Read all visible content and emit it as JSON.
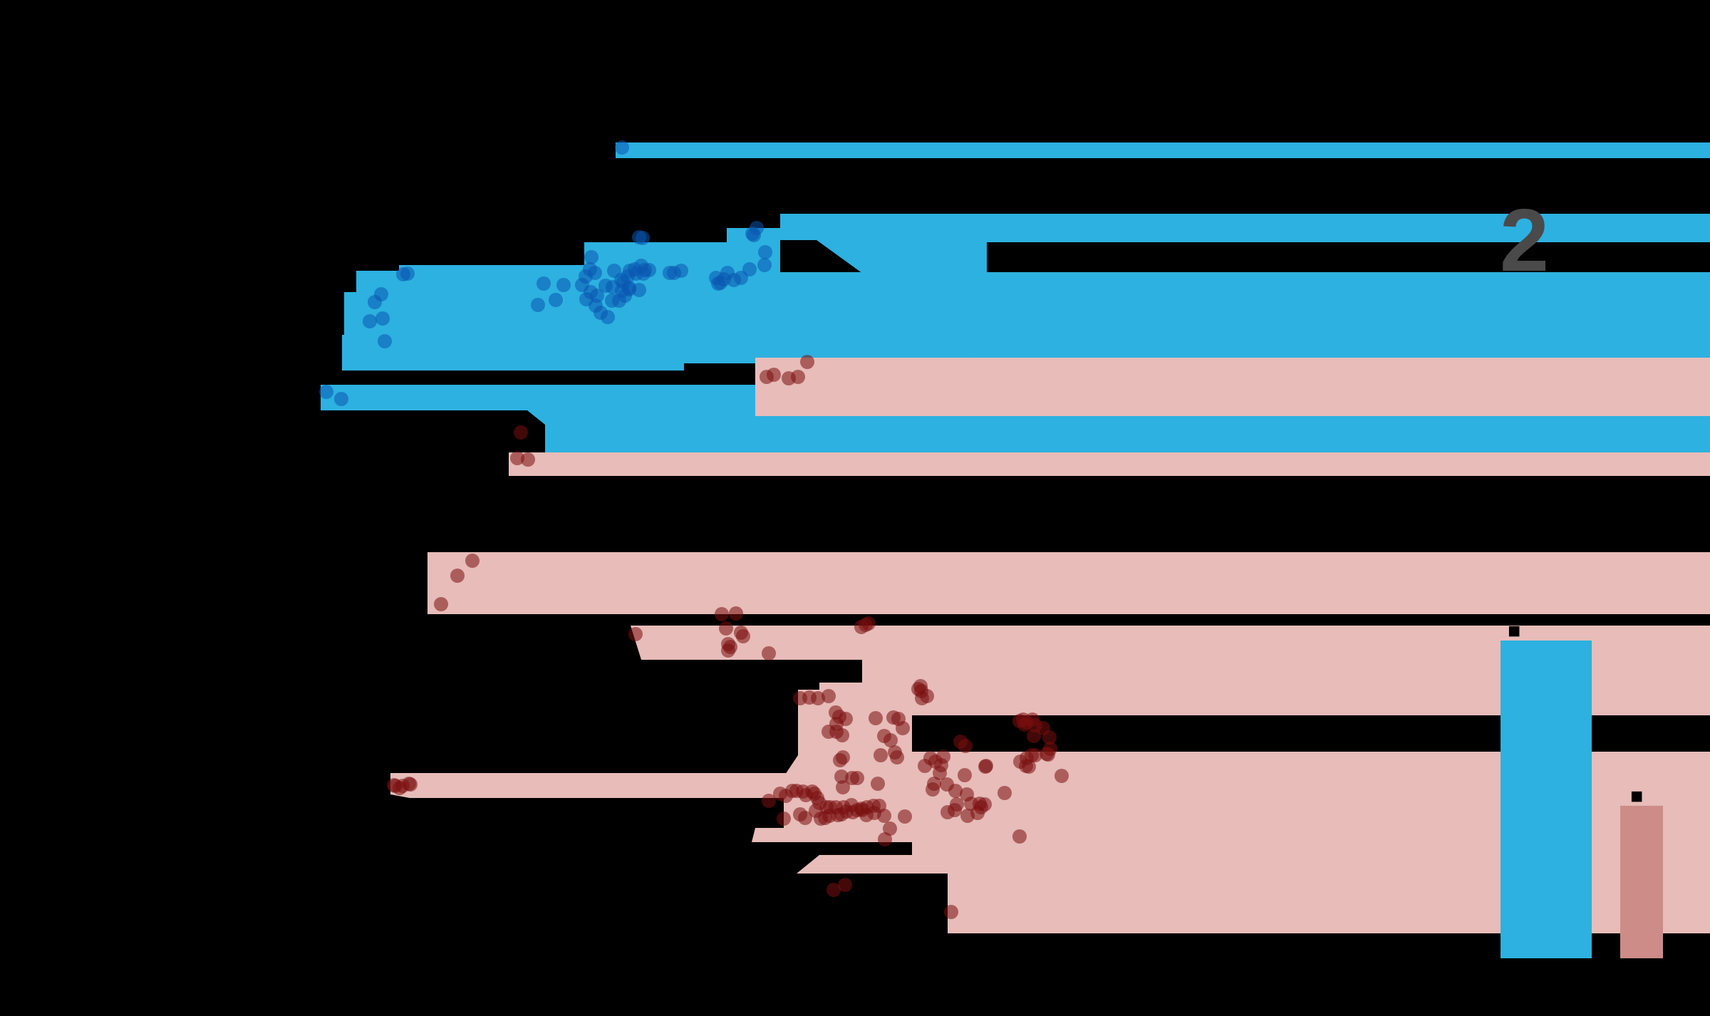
{
  "chart_data": {
    "type": "scatter",
    "year_label": "2",
    "colors": {
      "group_a": "#2db1e0",
      "group_b": "#e7bcb9",
      "group_a_points": "#0a55b0",
      "group_b_points": "#7a0f0f",
      "group_b_bar": "#cd8c88",
      "year_label": "#4a4a4a"
    },
    "groups": [
      {
        "id": "group_a",
        "points": [
          [
            873,
            207
          ],
          [
            566,
            385
          ],
          [
            572,
            384
          ],
          [
            526,
            424
          ],
          [
            535,
            413
          ],
          [
            519,
            451
          ],
          [
            537,
            447
          ],
          [
            540,
            479
          ],
          [
            458,
            550
          ],
          [
            479,
            560
          ],
          [
            763,
            398
          ],
          [
            791,
            400
          ],
          [
            755,
            428
          ],
          [
            780,
            421
          ],
          [
            859,
            422
          ],
          [
            869,
            422
          ],
          [
            838,
            415
          ],
          [
            862,
            380
          ],
          [
            860,
            403
          ],
          [
            872,
            393
          ],
          [
            884,
            380
          ],
          [
            877,
            415
          ],
          [
            883,
            406
          ],
          [
            881,
            388
          ],
          [
            900,
            373
          ],
          [
            893,
            384
          ],
          [
            897,
            407
          ],
          [
            903,
            384
          ],
          [
            911,
            379
          ],
          [
            905,
            379
          ],
          [
            891,
            378
          ],
          [
            883,
            404
          ],
          [
            873,
            408
          ],
          [
            875,
            396
          ],
          [
            850,
            401
          ],
          [
            828,
            378
          ],
          [
            835,
            383
          ],
          [
            829,
            410
          ],
          [
            822,
            388
          ],
          [
            817,
            400
          ],
          [
            823,
            420
          ],
          [
            836,
            429
          ],
          [
            843,
            439
          ],
          [
            853,
            445
          ],
          [
            830,
            361
          ],
          [
            940,
            383
          ],
          [
            946,
            383
          ],
          [
            956,
            380
          ],
          [
            1005,
            390
          ],
          [
            1011,
            397
          ],
          [
            1016,
            392
          ],
          [
            1021,
            383
          ],
          [
            1030,
            393
          ],
          [
            1040,
            390
          ],
          [
            1052,
            378
          ],
          [
            1058,
            330
          ],
          [
            1056,
            328
          ],
          [
            1062,
            320
          ],
          [
            1074,
            354
          ],
          [
            1073,
            372
          ],
          [
            1008,
            398
          ],
          [
            902,
            334
          ],
          [
            897,
            333
          ]
        ]
      },
      {
        "id": "group_b",
        "points": [
          [
            1133,
            508
          ],
          [
            1120,
            529
          ],
          [
            1107,
            531
          ],
          [
            1076,
            529
          ],
          [
            1086,
            526
          ],
          [
            731,
            607
          ],
          [
            726,
            643
          ],
          [
            741,
            645
          ],
          [
            663,
            787
          ],
          [
            642,
            808
          ],
          [
            619,
            848
          ],
          [
            892,
            890
          ],
          [
            1013,
            862
          ],
          [
            1033,
            861
          ],
          [
            1019,
            882
          ],
          [
            1040,
            888
          ],
          [
            1025,
            908
          ],
          [
            1043,
            893
          ],
          [
            1022,
            904
          ],
          [
            1022,
            913
          ],
          [
            1079,
            917
          ],
          [
            1209,
            880
          ],
          [
            1219,
            875
          ],
          [
            1215,
            877
          ],
          [
            1292,
            963
          ],
          [
            1293,
            970
          ],
          [
            1289,
            967
          ],
          [
            1294,
            980
          ],
          [
            1301,
            977
          ],
          [
            1123,
            980
          ],
          [
            1136,
            979
          ],
          [
            1148,
            980
          ],
          [
            1163,
            977
          ],
          [
            1178,
            1006
          ],
          [
            1173,
            1000
          ],
          [
            1174,
            1016
          ],
          [
            1163,
            1027
          ],
          [
            1174,
            1027
          ],
          [
            1187,
            1009
          ],
          [
            1182,
            1032
          ],
          [
            1229,
            1008
          ],
          [
            1254,
            1007
          ],
          [
            1261,
            1009
          ],
          [
            1267,
            1022
          ],
          [
            1250,
            1039
          ],
          [
            1241,
            1033
          ],
          [
            1236,
            1060
          ],
          [
            1256,
            1056
          ],
          [
            1259,
            1063
          ],
          [
            1179,
            1067
          ],
          [
            1183,
            1063
          ],
          [
            1203,
            1092
          ],
          [
            1196,
            1092
          ],
          [
            1181,
            1090
          ],
          [
            1183,
            1105
          ],
          [
            1232,
            1100
          ],
          [
            1306,
            1064
          ],
          [
            1298,
            1075
          ],
          [
            1313,
            1069
          ],
          [
            1324,
            1062
          ],
          [
            1321,
            1074
          ],
          [
            1319,
            1085
          ],
          [
            1311,
            1100
          ],
          [
            1309,
            1108
          ],
          [
            1329,
            1101
          ],
          [
            1348,
            1041
          ],
          [
            1355,
            1047
          ],
          [
            1384,
            1075
          ],
          [
            1383,
            1076
          ],
          [
            1354,
            1088
          ],
          [
            1341,
            1110
          ],
          [
            1343,
            1129
          ],
          [
            1357,
            1115
          ],
          [
            1358,
            1145
          ],
          [
            1363,
            1128
          ],
          [
            1340,
            1137
          ],
          [
            1330,
            1140
          ],
          [
            1372,
            1141
          ],
          [
            1382,
            1129
          ],
          [
            1377,
            1133
          ],
          [
            1410,
            1113
          ],
          [
            1431,
            1012
          ],
          [
            1436,
            1010
          ],
          [
            1438,
            1017
          ],
          [
            1441,
            1014
          ],
          [
            1449,
            1010
          ],
          [
            1453,
            1018
          ],
          [
            1451,
            1033
          ],
          [
            1464,
            1022
          ],
          [
            1473,
            1035
          ],
          [
            1474,
            1051
          ],
          [
            1469,
            1058
          ],
          [
            1471,
            1059
          ],
          [
            1441,
            1064
          ],
          [
            1432,
            1069
          ],
          [
            1448,
            1060
          ],
          [
            1453,
            1060
          ],
          [
            1440,
            1075
          ],
          [
            1444,
            1076
          ],
          [
            1490,
            1089
          ],
          [
            1375,
            1128
          ],
          [
            1079,
            1124
          ],
          [
            1095,
            1114
          ],
          [
            1103,
            1117
          ],
          [
            1112,
            1110
          ],
          [
            1118,
            1110
          ],
          [
            1127,
            1111
          ],
          [
            1131,
            1116
          ],
          [
            1143,
            1114
          ],
          [
            1140,
            1111
          ],
          [
            1147,
            1120
          ],
          [
            1150,
            1127
          ],
          [
            1160,
            1133
          ],
          [
            1165,
            1133
          ],
          [
            1173,
            1133
          ],
          [
            1184,
            1133
          ],
          [
            1195,
            1130
          ],
          [
            1209,
            1135
          ],
          [
            1217,
            1133
          ],
          [
            1226,
            1131
          ],
          [
            1234,
            1131
          ],
          [
            1145,
            1138
          ],
          [
            1158,
            1148
          ],
          [
            1164,
            1145
          ],
          [
            1176,
            1144
          ],
          [
            1181,
            1143
          ],
          [
            1197,
            1140
          ],
          [
            1203,
            1137
          ],
          [
            1210,
            1137
          ],
          [
            1227,
            1141
          ],
          [
            1241,
            1145
          ],
          [
            1249,
            1163
          ],
          [
            1242,
            1178
          ],
          [
            1270,
            1146
          ],
          [
            1152,
            1149
          ],
          [
            1130,
            1148
          ],
          [
            1100,
            1149
          ],
          [
            1123,
            1143
          ],
          [
            1188,
            1139
          ],
          [
            1216,
            1144
          ],
          [
            1431,
            1174
          ],
          [
            1186,
            1242
          ],
          [
            1170,
            1249
          ],
          [
            1335,
            1280
          ],
          [
            574,
            1100
          ],
          [
            565,
            1103
          ],
          [
            576,
            1101
          ],
          [
            561,
            1106
          ],
          [
            555,
            1103
          ],
          [
            553,
            1102
          ]
        ]
      }
    ],
    "bars": [
      {
        "label": "■",
        "value": 100,
        "color": "#2db1e0"
      },
      {
        "label": "■",
        "value": 48,
        "color": "#cd8c88"
      }
    ]
  }
}
